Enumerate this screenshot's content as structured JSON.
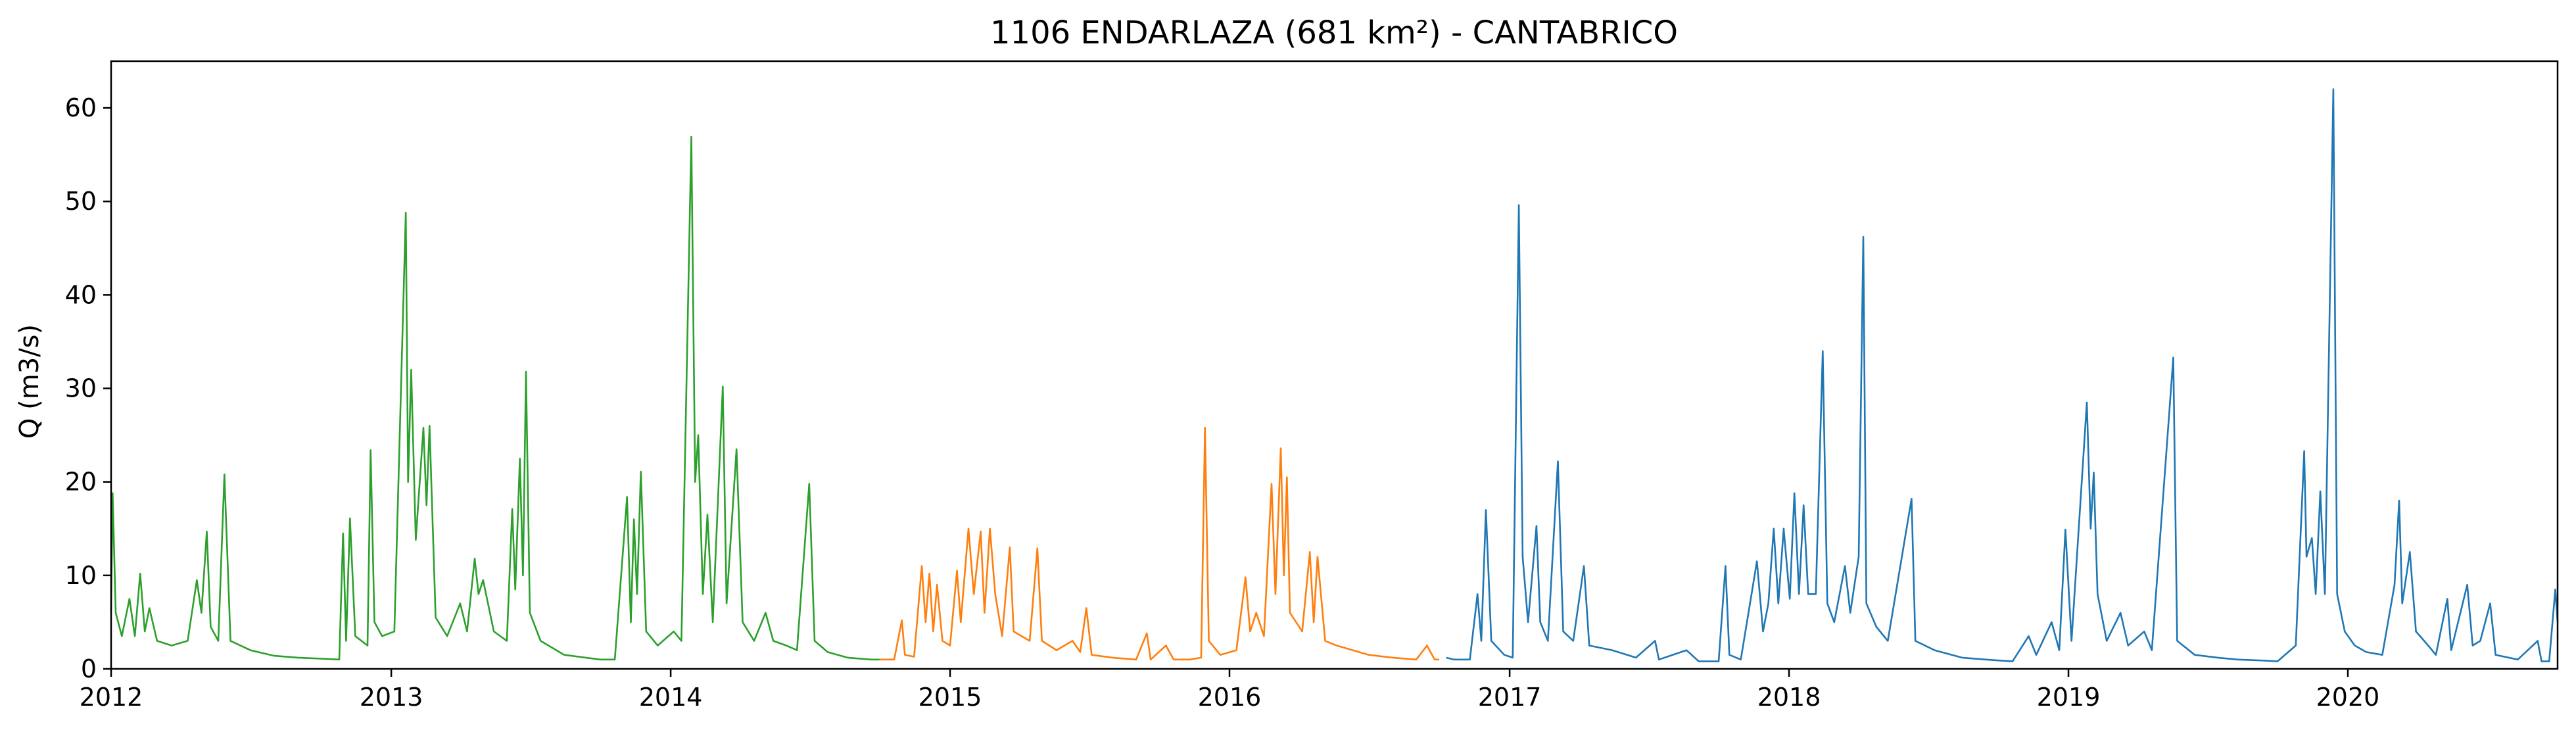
{
  "chart_data": {
    "type": "line",
    "title": "1106 ENDARLAZA (681 km²) - CANTABRICO",
    "xlabel": "",
    "ylabel": "Q (m3/s)",
    "xlim": [
      "2012-01-01",
      "2020-10-01"
    ],
    "ylim": [
      0,
      65
    ],
    "grid": false,
    "legend": "none",
    "x_ticks": [
      "2012",
      "2013",
      "2014",
      "2015",
      "2016",
      "2017",
      "2018",
      "2019",
      "2020"
    ],
    "y_ticks": [
      "0",
      "10",
      "20",
      "30",
      "40",
      "50",
      "60"
    ],
    "series": [
      {
        "color": "#2ca02c",
        "points": [
          [
            "2012-01-01",
            6.0
          ],
          [
            "2012-01-03",
            18.8
          ],
          [
            "2012-01-07",
            6.0
          ],
          [
            "2012-01-15",
            3.5
          ],
          [
            "2012-01-25",
            7.5
          ],
          [
            "2012-02-01",
            3.5
          ],
          [
            "2012-02-08",
            10.2
          ],
          [
            "2012-02-14",
            4.0
          ],
          [
            "2012-02-20",
            6.5
          ],
          [
            "2012-03-01",
            3.0
          ],
          [
            "2012-03-20",
            2.5
          ],
          [
            "2012-04-10",
            3.0
          ],
          [
            "2012-04-22",
            9.5
          ],
          [
            "2012-04-28",
            6.0
          ],
          [
            "2012-05-05",
            14.7
          ],
          [
            "2012-05-10",
            4.5
          ],
          [
            "2012-05-20",
            3.0
          ],
          [
            "2012-05-28",
            20.8
          ],
          [
            "2012-06-05",
            3.0
          ],
          [
            "2012-07-01",
            2.0
          ],
          [
            "2012-08-01",
            1.4
          ],
          [
            "2012-09-01",
            1.2
          ],
          [
            "2012-10-01",
            1.1
          ],
          [
            "2012-10-25",
            1.0
          ],
          [
            "2012-10-30",
            14.5
          ],
          [
            "2012-11-03",
            3.0
          ],
          [
            "2012-11-08",
            16.1
          ],
          [
            "2012-11-15",
            3.5
          ],
          [
            "2012-12-01",
            2.5
          ],
          [
            "2012-12-05",
            23.4
          ],
          [
            "2012-12-10",
            5.0
          ],
          [
            "2012-12-20",
            3.5
          ],
          [
            "2013-01-05",
            4.0
          ],
          [
            "2013-01-20",
            48.8
          ],
          [
            "2013-01-23",
            20.0
          ],
          [
            "2013-01-27",
            32.0
          ],
          [
            "2013-02-02",
            13.8
          ],
          [
            "2013-02-12",
            25.8
          ],
          [
            "2013-02-16",
            17.5
          ],
          [
            "2013-02-20",
            26.0
          ],
          [
            "2013-02-28",
            5.5
          ],
          [
            "2013-03-15",
            3.5
          ],
          [
            "2013-04-01",
            7.0
          ],
          [
            "2013-04-10",
            4.0
          ],
          [
            "2013-04-20",
            11.8
          ],
          [
            "2013-04-25",
            8.0
          ],
          [
            "2013-05-01",
            9.5
          ],
          [
            "2013-05-15",
            4.0
          ],
          [
            "2013-06-01",
            3.0
          ],
          [
            "2013-06-08",
            17.1
          ],
          [
            "2013-06-12",
            8.5
          ],
          [
            "2013-06-18",
            22.5
          ],
          [
            "2013-06-22",
            10.0
          ],
          [
            "2013-06-26",
            31.8
          ],
          [
            "2013-07-01",
            6.0
          ],
          [
            "2013-07-15",
            3.0
          ],
          [
            "2013-08-15",
            1.5
          ],
          [
            "2013-10-01",
            1.0
          ],
          [
            "2013-10-20",
            1.0
          ],
          [
            "2013-11-05",
            18.4
          ],
          [
            "2013-11-10",
            5.0
          ],
          [
            "2013-11-14",
            16.0
          ],
          [
            "2013-11-18",
            8.0
          ],
          [
            "2013-11-23",
            21.1
          ],
          [
            "2013-11-30",
            4.0
          ],
          [
            "2013-12-15",
            2.5
          ],
          [
            "2014-01-05",
            4.0
          ],
          [
            "2014-01-15",
            3.0
          ],
          [
            "2014-01-28",
            56.9
          ],
          [
            "2014-02-02",
            20.0
          ],
          [
            "2014-02-06",
            25.0
          ],
          [
            "2014-02-12",
            8.0
          ],
          [
            "2014-02-18",
            16.5
          ],
          [
            "2014-02-25",
            5.0
          ],
          [
            "2014-03-10",
            30.2
          ],
          [
            "2014-03-15",
            7.0
          ],
          [
            "2014-03-28",
            23.5
          ],
          [
            "2014-04-05",
            5.0
          ],
          [
            "2014-04-20",
            3.0
          ],
          [
            "2014-05-05",
            6.0
          ],
          [
            "2014-05-15",
            3.0
          ],
          [
            "2014-06-01",
            2.5
          ],
          [
            "2014-06-15",
            2.0
          ],
          [
            "2014-07-01",
            19.8
          ],
          [
            "2014-07-08",
            3.0
          ],
          [
            "2014-07-25",
            1.8
          ],
          [
            "2014-08-20",
            1.2
          ],
          [
            "2014-09-20",
            1.0
          ],
          [
            "2014-10-01",
            1.0
          ]
        ]
      },
      {
        "color": "#ff7f0e",
        "points": [
          [
            "2014-10-01",
            1.0
          ],
          [
            "2014-10-20",
            1.0
          ],
          [
            "2014-10-30",
            5.2
          ],
          [
            "2014-11-03",
            1.5
          ],
          [
            "2014-11-15",
            1.3
          ],
          [
            "2014-11-25",
            11.0
          ],
          [
            "2014-11-30",
            5.0
          ],
          [
            "2014-12-05",
            10.2
          ],
          [
            "2014-12-10",
            4.0
          ],
          [
            "2014-12-15",
            9.0
          ],
          [
            "2014-12-22",
            3.0
          ],
          [
            "2015-01-01",
            2.5
          ],
          [
            "2015-01-10",
            10.5
          ],
          [
            "2015-01-15",
            5.0
          ],
          [
            "2015-01-25",
            15.0
          ],
          [
            "2015-02-01",
            8.0
          ],
          [
            "2015-02-10",
            14.7
          ],
          [
            "2015-02-15",
            6.0
          ],
          [
            "2015-02-22",
            15.0
          ],
          [
            "2015-03-01",
            8.0
          ],
          [
            "2015-03-10",
            3.5
          ],
          [
            "2015-03-20",
            13.0
          ],
          [
            "2015-03-25",
            4.0
          ],
          [
            "2015-04-15",
            3.0
          ],
          [
            "2015-04-25",
            12.9
          ],
          [
            "2015-05-01",
            3.0
          ],
          [
            "2015-05-20",
            2.0
          ],
          [
            "2015-06-10",
            3.0
          ],
          [
            "2015-06-20",
            1.8
          ],
          [
            "2015-06-28",
            6.5
          ],
          [
            "2015-07-05",
            1.5
          ],
          [
            "2015-08-01",
            1.2
          ],
          [
            "2015-09-01",
            1.0
          ],
          [
            "2015-09-15",
            3.8
          ],
          [
            "2015-09-20",
            1.0
          ],
          [
            "2015-10-10",
            2.5
          ],
          [
            "2015-10-20",
            1.0
          ],
          [
            "2015-11-10",
            1.0
          ],
          [
            "2015-11-25",
            1.2
          ],
          [
            "2015-11-30",
            25.8
          ],
          [
            "2015-12-05",
            3.0
          ],
          [
            "2015-12-20",
            1.5
          ],
          [
            "2016-01-10",
            2.0
          ],
          [
            "2016-01-22",
            9.8
          ],
          [
            "2016-01-28",
            4.0
          ],
          [
            "2016-02-05",
            6.0
          ],
          [
            "2016-02-15",
            3.5
          ],
          [
            "2016-02-25",
            19.8
          ],
          [
            "2016-03-01",
            8.0
          ],
          [
            "2016-03-08",
            23.6
          ],
          [
            "2016-03-12",
            10.0
          ],
          [
            "2016-03-16",
            20.5
          ],
          [
            "2016-03-20",
            6.0
          ],
          [
            "2016-04-05",
            4.0
          ],
          [
            "2016-04-15",
            12.5
          ],
          [
            "2016-04-20",
            5.0
          ],
          [
            "2016-04-25",
            12.0
          ],
          [
            "2016-05-05",
            3.0
          ],
          [
            "2016-05-20",
            2.5
          ],
          [
            "2016-06-10",
            2.0
          ],
          [
            "2016-07-01",
            1.5
          ],
          [
            "2016-08-01",
            1.2
          ],
          [
            "2016-09-01",
            1.0
          ],
          [
            "2016-09-15",
            2.5
          ],
          [
            "2016-09-25",
            1.0
          ],
          [
            "2016-10-01",
            1.0
          ]
        ]
      },
      {
        "color": "#1f77b4",
        "points": [
          [
            "2016-10-10",
            1.2
          ],
          [
            "2016-10-20",
            1.0
          ],
          [
            "2016-11-10",
            1.0
          ],
          [
            "2016-11-20",
            8.0
          ],
          [
            "2016-11-25",
            3.0
          ],
          [
            "2016-12-01",
            17.0
          ],
          [
            "2016-12-08",
            3.0
          ],
          [
            "2016-12-25",
            1.5
          ],
          [
            "2017-01-05",
            1.2
          ],
          [
            "2017-01-13",
            49.6
          ],
          [
            "2017-01-18",
            12.0
          ],
          [
            "2017-01-25",
            5.0
          ],
          [
            "2017-02-05",
            15.3
          ],
          [
            "2017-02-10",
            5.0
          ],
          [
            "2017-02-20",
            3.0
          ],
          [
            "2017-03-05",
            22.2
          ],
          [
            "2017-03-12",
            4.0
          ],
          [
            "2017-03-25",
            3.0
          ],
          [
            "2017-04-08",
            11.0
          ],
          [
            "2017-04-15",
            2.5
          ],
          [
            "2017-05-15",
            2.0
          ],
          [
            "2017-06-15",
            1.2
          ],
          [
            "2017-07-10",
            3.0
          ],
          [
            "2017-07-15",
            1.0
          ],
          [
            "2017-08-20",
            2.0
          ],
          [
            "2017-09-05",
            0.8
          ],
          [
            "2017-10-01",
            0.8
          ],
          [
            "2017-10-10",
            11.0
          ],
          [
            "2017-10-15",
            1.5
          ],
          [
            "2017-10-30",
            1.0
          ],
          [
            "2017-11-20",
            11.5
          ],
          [
            "2017-11-28",
            4.0
          ],
          [
            "2017-12-05",
            7.0
          ],
          [
            "2017-12-12",
            15.0
          ],
          [
            "2017-12-18",
            7.0
          ],
          [
            "2017-12-25",
            15.0
          ],
          [
            "2018-01-02",
            7.5
          ],
          [
            "2018-01-08",
            18.8
          ],
          [
            "2018-01-14",
            8.0
          ],
          [
            "2018-01-20",
            17.5
          ],
          [
            "2018-01-26",
            8.0
          ],
          [
            "2018-02-05",
            8.0
          ],
          [
            "2018-02-14",
            34.0
          ],
          [
            "2018-02-20",
            7.0
          ],
          [
            "2018-03-01",
            5.0
          ],
          [
            "2018-03-15",
            11.0
          ],
          [
            "2018-03-22",
            6.0
          ],
          [
            "2018-04-02",
            12.0
          ],
          [
            "2018-04-08",
            46.2
          ],
          [
            "2018-04-12",
            7.0
          ],
          [
            "2018-04-25",
            4.5
          ],
          [
            "2018-05-10",
            3.0
          ],
          [
            "2018-06-10",
            18.2
          ],
          [
            "2018-06-15",
            3.0
          ],
          [
            "2018-07-10",
            2.0
          ],
          [
            "2018-08-15",
            1.2
          ],
          [
            "2018-09-15",
            1.0
          ],
          [
            "2018-10-20",
            0.8
          ],
          [
            "2018-11-10",
            3.5
          ],
          [
            "2018-11-20",
            1.5
          ],
          [
            "2018-12-10",
            5.0
          ],
          [
            "2018-12-20",
            2.0
          ],
          [
            "2018-12-28",
            14.9
          ],
          [
            "2019-01-05",
            3.0
          ],
          [
            "2019-01-25",
            28.5
          ],
          [
            "2019-01-30",
            15.0
          ],
          [
            "2019-02-03",
            21.0
          ],
          [
            "2019-02-08",
            8.0
          ],
          [
            "2019-02-20",
            3.0
          ],
          [
            "2019-03-10",
            6.0
          ],
          [
            "2019-03-20",
            2.5
          ],
          [
            "2019-04-10",
            4.0
          ],
          [
            "2019-04-20",
            2.0
          ],
          [
            "2019-05-18",
            33.3
          ],
          [
            "2019-05-23",
            3.0
          ],
          [
            "2019-06-15",
            1.5
          ],
          [
            "2019-07-15",
            1.2
          ],
          [
            "2019-08-10",
            1.0
          ],
          [
            "2019-09-10",
            0.9
          ],
          [
            "2019-10-01",
            0.8
          ],
          [
            "2019-10-25",
            2.5
          ],
          [
            "2019-11-05",
            23.3
          ],
          [
            "2019-11-08",
            12.0
          ],
          [
            "2019-11-15",
            14.0
          ],
          [
            "2019-11-20",
            8.0
          ],
          [
            "2019-11-26",
            19.0
          ],
          [
            "2019-12-02",
            8.0
          ],
          [
            "2019-12-13",
            62.0
          ],
          [
            "2019-12-18",
            8.0
          ],
          [
            "2019-12-28",
            4.0
          ],
          [
            "2020-01-10",
            2.5
          ],
          [
            "2020-01-25",
            1.8
          ],
          [
            "2020-02-15",
            1.5
          ],
          [
            "2020-03-02",
            9.0
          ],
          [
            "2020-03-08",
            18.0
          ],
          [
            "2020-03-12",
            7.0
          ],
          [
            "2020-03-22",
            12.5
          ],
          [
            "2020-03-30",
            4.0
          ],
          [
            "2020-04-15",
            2.5
          ],
          [
            "2020-04-25",
            1.5
          ],
          [
            "2020-05-10",
            7.5
          ],
          [
            "2020-05-15",
            2.0
          ],
          [
            "2020-06-05",
            9.0
          ],
          [
            "2020-06-12",
            2.5
          ],
          [
            "2020-06-22",
            3.0
          ],
          [
            "2020-07-05",
            7.0
          ],
          [
            "2020-07-12",
            1.5
          ],
          [
            "2020-08-10",
            1.0
          ],
          [
            "2020-09-05",
            3.0
          ],
          [
            "2020-09-10",
            0.8
          ],
          [
            "2020-09-20",
            0.8
          ],
          [
            "2020-09-28",
            8.5
          ],
          [
            "2020-10-01",
            5.0
          ]
        ]
      }
    ]
  }
}
